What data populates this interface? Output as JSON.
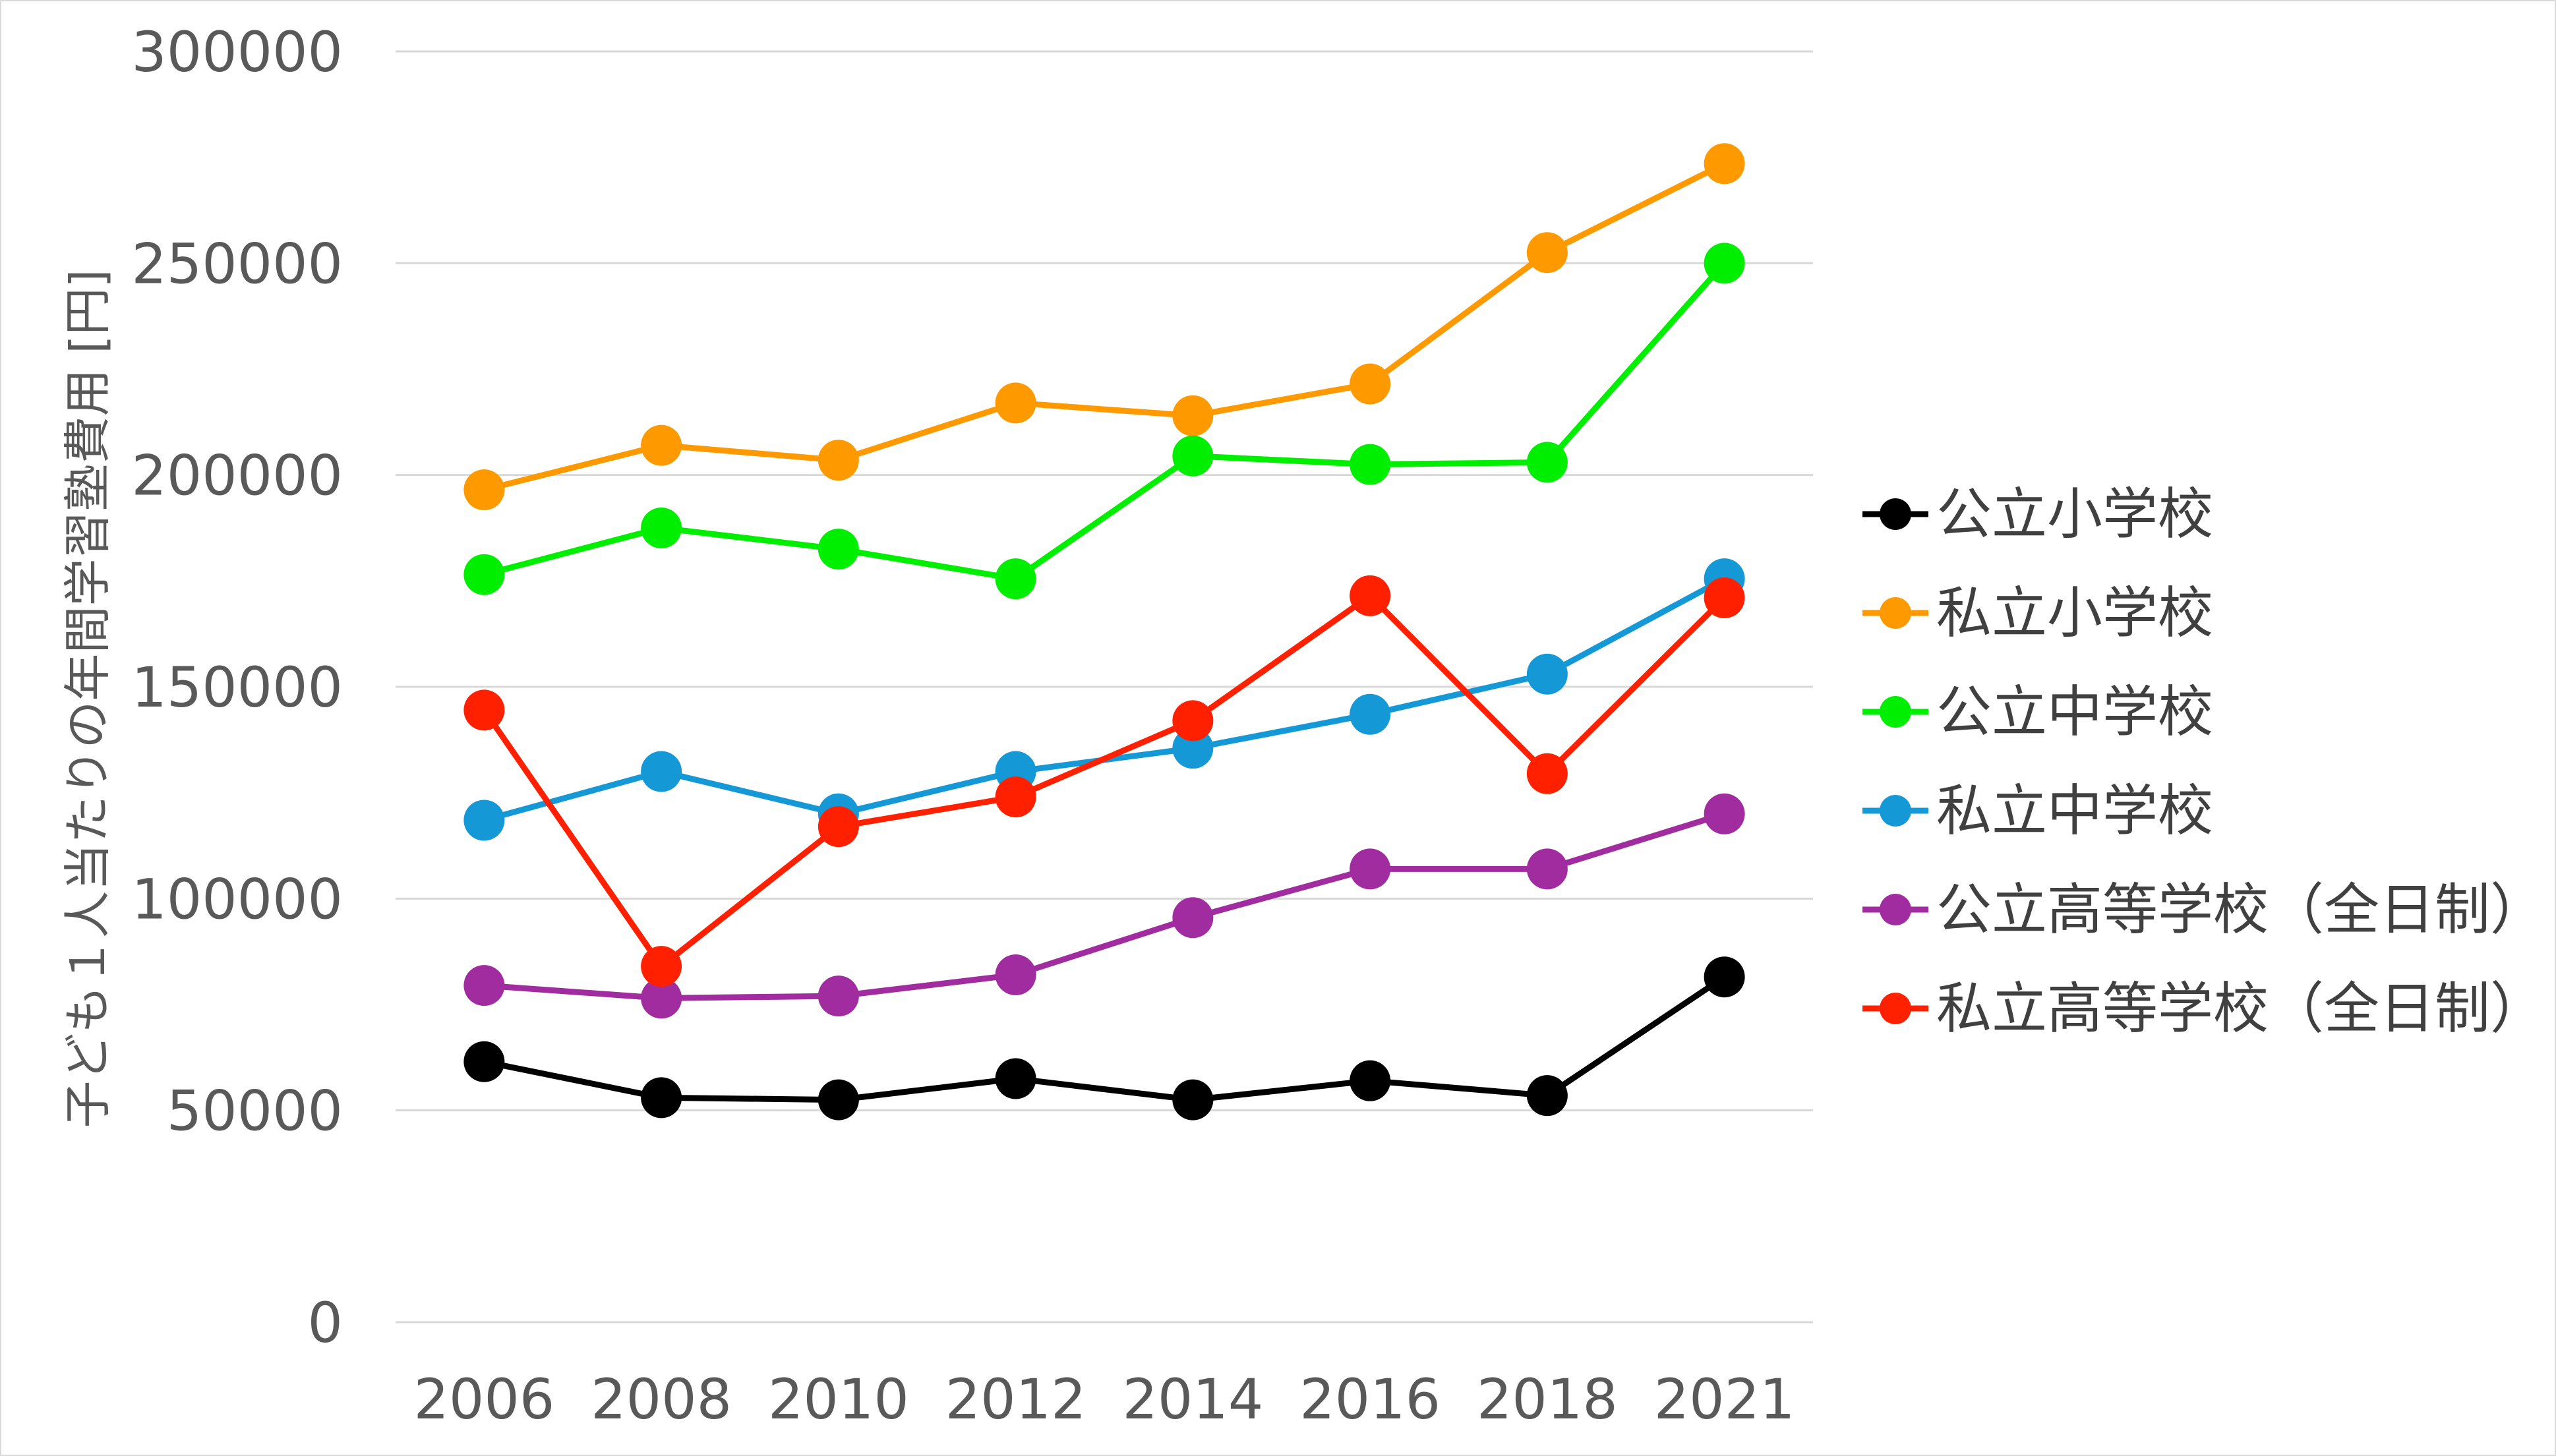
{
  "chart_data": {
    "type": "line",
    "title": "",
    "xlabel": "",
    "ylabel": "子ども１人当たりの年間学習塾費用 [円]",
    "categories": [
      "2006",
      "2008",
      "2010",
      "2012",
      "2014",
      "2016",
      "2018",
      "2021"
    ],
    "ylim": [
      0,
      300000
    ],
    "yticks": [
      0,
      50000,
      100000,
      150000,
      200000,
      250000,
      300000
    ],
    "ytick_labels": [
      "0",
      "50000",
      "100000",
      "150000",
      "200000",
      "250000",
      "300000"
    ],
    "grid": true,
    "legend_position": "right",
    "series": [
      {
        "name": "公立小学校",
        "color": "#000000",
        "values": [
          61500,
          53000,
          52500,
          57500,
          52500,
          57000,
          53500,
          81500
        ]
      },
      {
        "name": "私立小学校",
        "color": "#ff9900",
        "values": [
          196500,
          207000,
          203500,
          217000,
          214000,
          221500,
          252500,
          273500
        ]
      },
      {
        "name": "公立中学校",
        "color": "#00ee00",
        "values": [
          176500,
          187500,
          182500,
          175500,
          204500,
          202500,
          203000,
          250000
        ]
      },
      {
        "name": "私立中学校",
        "color": "#1499d6",
        "values": [
          118500,
          130000,
          120000,
          130000,
          135500,
          143500,
          153000,
          175500
        ]
      },
      {
        "name": "公立高等学校（全日制）",
        "color": "#a02ca0",
        "values": [
          79500,
          76500,
          77000,
          82000,
          95500,
          107000,
          107000,
          120000
        ]
      },
      {
        "name": "私立高等学校（全日制）",
        "color": "#ff2000",
        "values": [
          144500,
          84000,
          117000,
          124000,
          142000,
          171500,
          129500,
          171000
        ]
      }
    ]
  }
}
